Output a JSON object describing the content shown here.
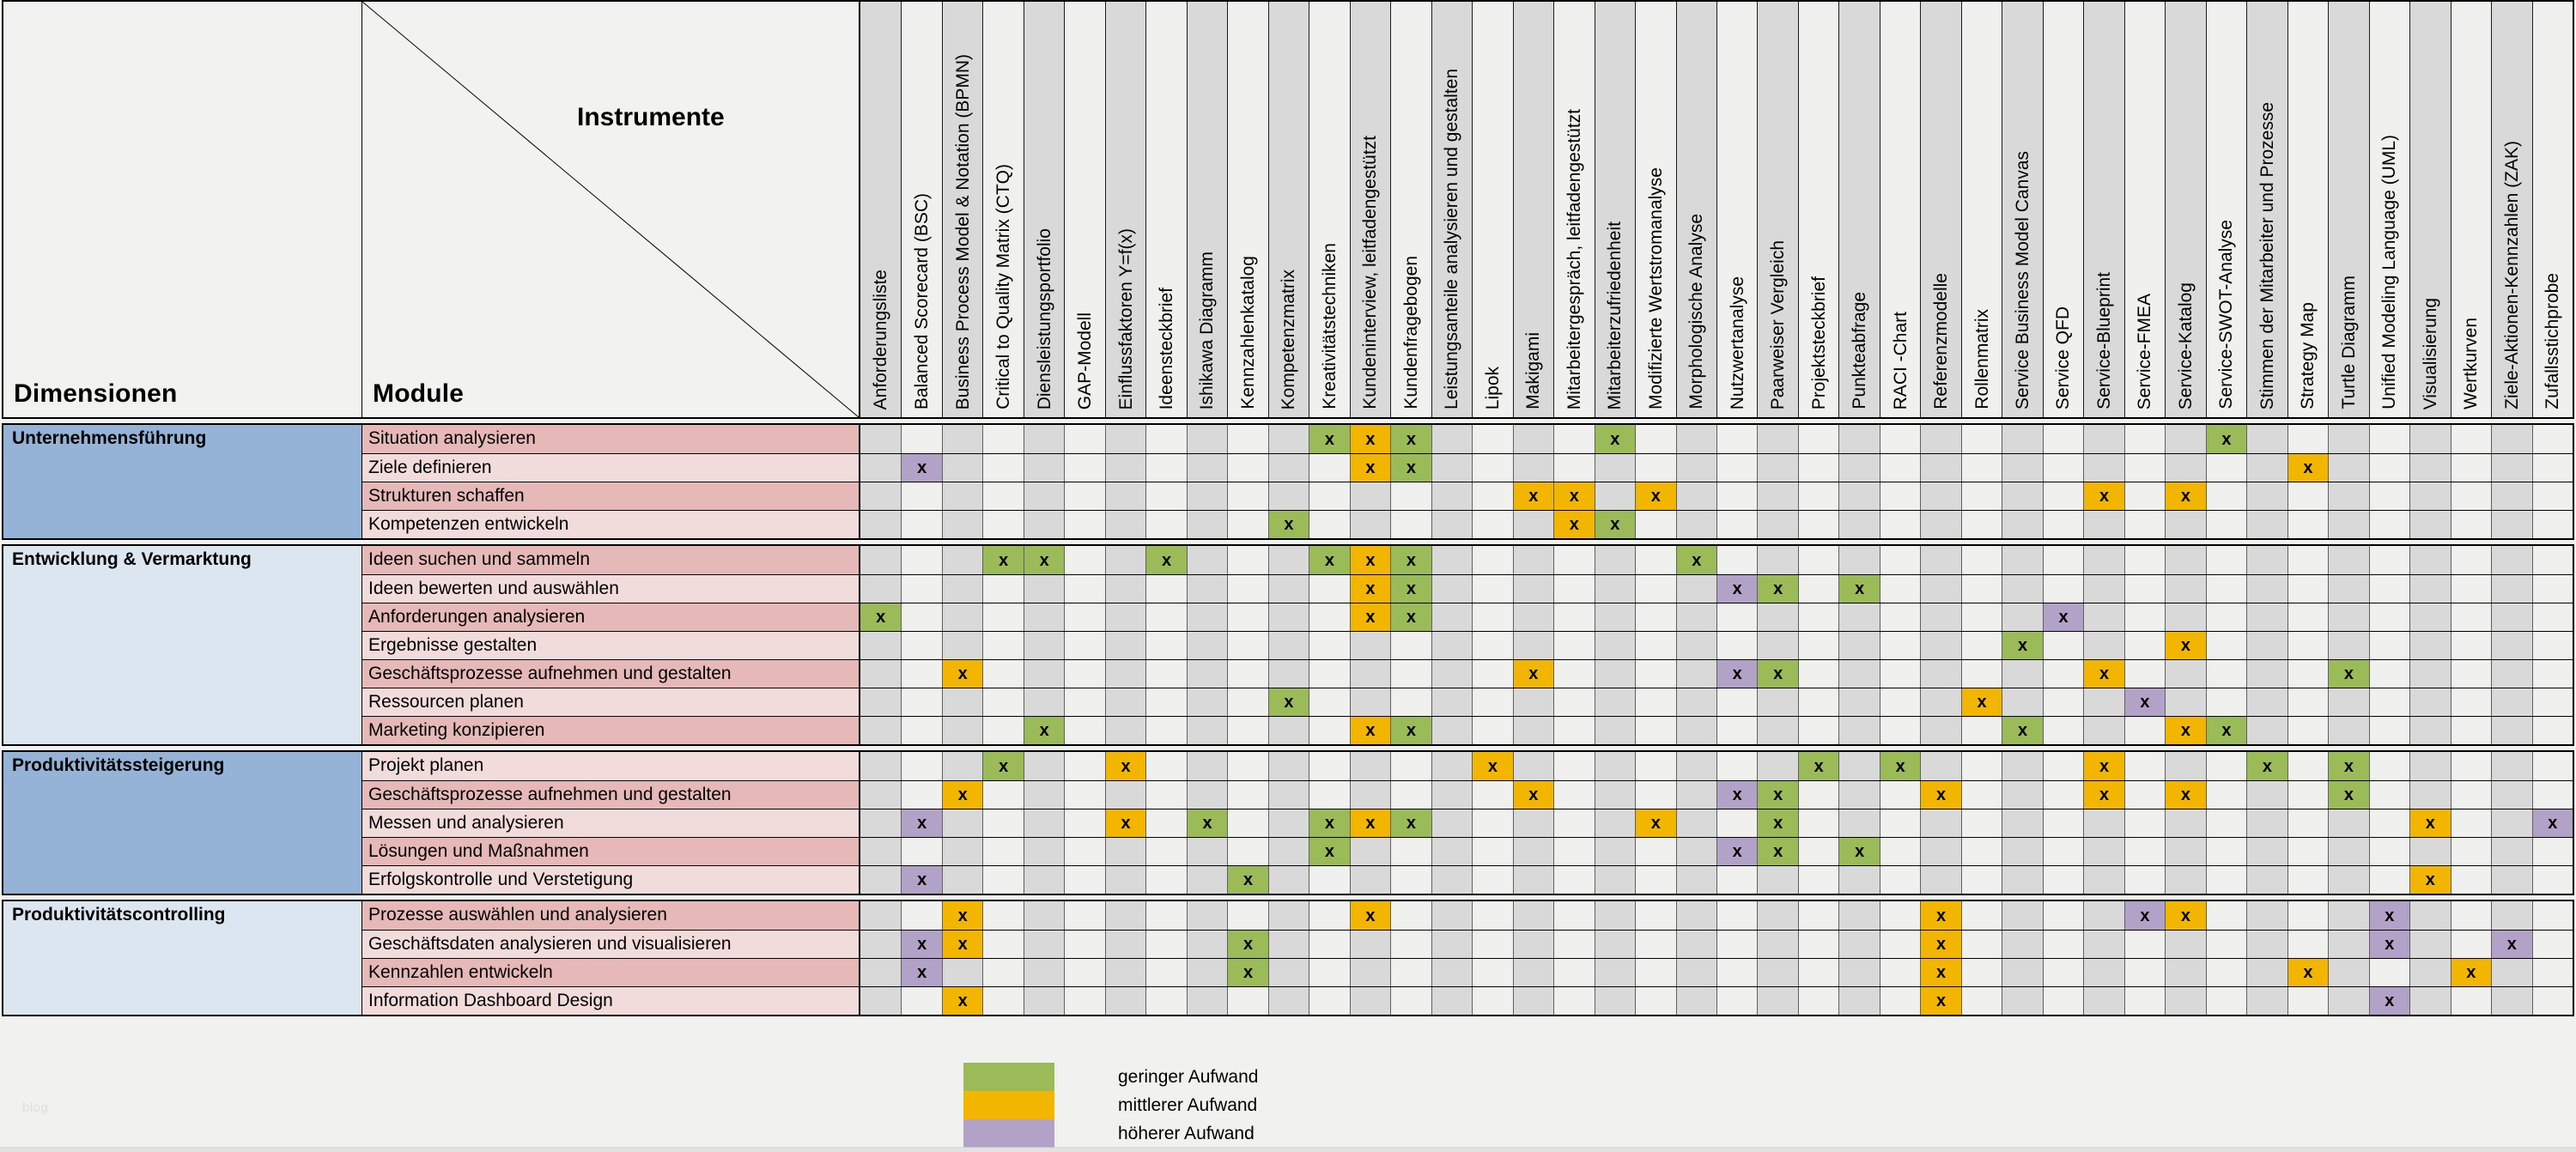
{
  "header": {
    "dimensions_label": "Dimensionen",
    "modules_label": "Module",
    "instruments_label": "Instrumente"
  },
  "columns": [
    "Anforderungsliste",
    "Balanced Scorecard (BSC)",
    "Business Process Model & Notation (BPMN)",
    "Critical to Quality Matrix (CTQ)",
    "Diensleistungsportfolio",
    "GAP-Modell",
    "Einflussfaktoren Y=f(x)",
    "Ideensteckbrief",
    "Ishikawa Diagramm",
    "Kennzahlenkatalog",
    "Kompetenzmatrix",
    "Kreativitätstechniken",
    "Kundeninterview, leitfadengestützt",
    "Kundenfragebogen",
    "Leistungsanteile analysieren und gestalten",
    "Lipok",
    "Makigami",
    "Mitarbeitergespräch, leitfadengestützt",
    "Mitarbeiterzufriedenheit",
    "Modifizierte Wertstromanalyse",
    "Morphologische Analyse",
    "Nutzwertanalyse",
    "Paarweiser Vergleich",
    "Projektsteckbrief",
    "Punkteabfrage",
    "RACI -Chart",
    "Referenzmodelle",
    "Rollenmatrix",
    "Service Business Model Canvas",
    "Service QFD",
    "Service-Blueprint",
    "Service-FMEA",
    "Service-Katalog",
    "Service-SWOT-Analyse",
    "Stimmen der Mitarbeiter und Prozesse",
    "Strategy Map",
    "Turtle Diagramm",
    "Unified Modeling Language (UML)",
    "Visualisierung",
    "Wertkurven",
    "Ziele-Aktionen-Kennzahlen (ZAK)",
    "Zufallsstichprobe"
  ],
  "groups": [
    {
      "name": "Unternehmensführung",
      "shade": "dark",
      "rows": [
        {
          "label": "Situation analysieren",
          "marks": {
            "12": "g",
            "13": "m",
            "14": "g",
            "19": "g",
            "34": "g"
          }
        },
        {
          "label": "Ziele definieren",
          "marks": {
            "2": "h",
            "13": "m",
            "14": "g",
            "36": "m"
          }
        },
        {
          "label": "Strukturen schaffen",
          "marks": {
            "17": "m",
            "18": "m",
            "20": "m",
            "31": "m",
            "33": "m"
          }
        },
        {
          "label": "Kompetenzen entwickeln",
          "marks": {
            "11": "g",
            "18": "m",
            "19": "g"
          }
        }
      ]
    },
    {
      "name": "Entwicklung & Vermarktung",
      "shade": "light",
      "rows": [
        {
          "label": "Ideen suchen und sammeln",
          "marks": {
            "4": "g",
            "5": "g",
            "8": "g",
            "12": "g",
            "13": "m",
            "14": "g",
            "21": "g"
          }
        },
        {
          "label": "Ideen bewerten und auswählen",
          "marks": {
            "13": "m",
            "14": "g",
            "22": "h",
            "23": "g",
            "25": "g"
          }
        },
        {
          "label": "Anforderungen analysieren",
          "marks": {
            "1": "g",
            "13": "m",
            "14": "g",
            "30": "h"
          }
        },
        {
          "label": "Ergebnisse gestalten",
          "marks": {
            "29": "g",
            "33": "m"
          }
        },
        {
          "label": "Geschäftsprozesse aufnehmen und gestalten",
          "marks": {
            "3": "m",
            "17": "m",
            "22": "h",
            "23": "g",
            "31": "m",
            "37": "g"
          }
        },
        {
          "label": "Ressourcen planen",
          "marks": {
            "11": "g",
            "28": "m",
            "32": "h"
          }
        },
        {
          "label": "Marketing konzipieren",
          "marks": {
            "5": "g",
            "13": "m",
            "14": "g",
            "29": "g",
            "33": "m",
            "34": "g"
          }
        }
      ]
    },
    {
      "name": "Produktivitätssteigerung",
      "shade": "dark",
      "rows": [
        {
          "label": "Projekt planen",
          "marks": {
            "4": "g",
            "7": "m",
            "16": "m",
            "24": "g",
            "26": "g",
            "31": "m",
            "35": "g",
            "37": "g"
          }
        },
        {
          "label": "Geschäftsprozesse aufnehmen und gestalten",
          "marks": {
            "3": "m",
            "17": "m",
            "22": "h",
            "23": "g",
            "27": "m",
            "31": "m",
            "33": "m",
            "37": "g"
          }
        },
        {
          "label": "Messen und analysieren",
          "marks": {
            "2": "h",
            "7": "m",
            "9": "g",
            "12": "g",
            "13": "m",
            "14": "g",
            "20": "m",
            "23": "g",
            "39": "m",
            "42": "h"
          }
        },
        {
          "label": "Lösungen und Maßnahmen",
          "marks": {
            "12": "g",
            "22": "h",
            "23": "g",
            "25": "g"
          }
        },
        {
          "label": "Erfolgskontrolle und Verstetigung",
          "marks": {
            "2": "h",
            "10": "g",
            "39": "m"
          }
        }
      ]
    },
    {
      "name": "Produktivitätscontrolling",
      "shade": "light",
      "rows": [
        {
          "label": "Prozesse auswählen und analysieren",
          "marks": {
            "3": "m",
            "13": "m",
            "27": "m",
            "32": "h",
            "33": "m",
            "38": "h"
          }
        },
        {
          "label": "Geschäftsdaten analysieren und visualisieren",
          "marks": {
            "2": "h",
            "3": "m",
            "10": "g",
            "27": "m",
            "38": "h",
            "41": "h"
          }
        },
        {
          "label": "Kennzahlen entwickeln",
          "marks": {
            "2": "h",
            "10": "g",
            "27": "m",
            "36": "m",
            "40": "m"
          }
        },
        {
          "label": "Information Dashboard Design",
          "marks": {
            "3": "m",
            "27": "m",
            "38": "h"
          }
        }
      ]
    }
  ],
  "legend": {
    "colors": {
      "g": "#9bbb59",
      "m": "#f2b600",
      "h": "#b3a2c7"
    },
    "items": [
      {
        "level": "g",
        "label": "geringer  Aufwand"
      },
      {
        "level": "m",
        "label": "mittlerer Aufwand"
      },
      {
        "level": "h",
        "label": "höherer Aufwand"
      }
    ]
  },
  "mark_symbol": "x",
  "watermark": "blog"
}
